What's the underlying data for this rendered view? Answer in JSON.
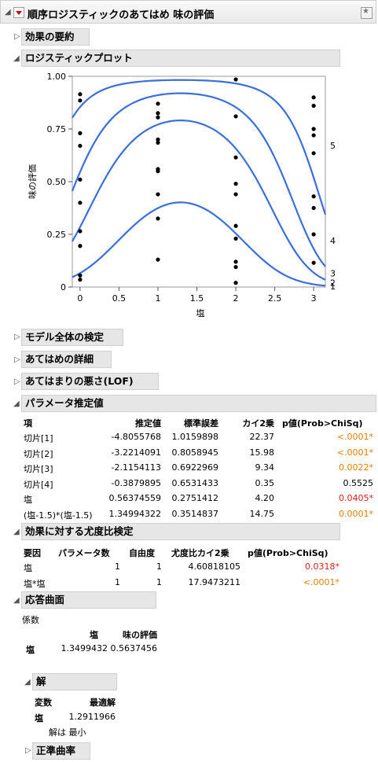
{
  "report": {
    "title": "順序ロジスティックのあてはめ 味の評価"
  },
  "sections": {
    "effects_summary": "効果の要約",
    "logistic_plot": "ロジスティックプロット",
    "whole_model": "モデル全体の検定",
    "fit_details": "あてはめの詳細",
    "lack_of_fit": "あてはまりの悪さ(LOF)",
    "param_estimates": "パラメータ推定値",
    "lr_tests": "効果に対する尤度比検定",
    "response_surface": "応答曲面",
    "solution": "解",
    "canonical": "正準曲率"
  },
  "chart_data": {
    "type": "line",
    "ylabel": "味の評価",
    "xlabel": "塩",
    "xlim": [
      -0.1,
      3.15
    ],
    "ylim": [
      0,
      1
    ],
    "x_ticks": [
      "0",
      "0.5",
      "1",
      "1.5",
      "2",
      "2.5",
      "3"
    ],
    "y_ticks": [
      "0",
      "0.25",
      "0.50",
      "0.75",
      "1.00"
    ],
    "right_labels": [
      "1",
      "2",
      "3",
      "4",
      "5"
    ],
    "intercepts": [
      -4.8055768,
      -3.2214091,
      -2.1154113,
      -0.3879895
    ],
    "b_salt": 0.56374559,
    "b_quad": 1.34994322,
    "points": [
      {
        "x": 0,
        "y": 0.915
      },
      {
        "x": 0,
        "y": 0.885
      },
      {
        "x": 0,
        "y": 0.73
      },
      {
        "x": 0,
        "y": 0.67
      },
      {
        "x": 0,
        "y": 0.51
      },
      {
        "x": 0,
        "y": 0.4
      },
      {
        "x": 0,
        "y": 0.265
      },
      {
        "x": 0,
        "y": 0.195
      },
      {
        "x": 0,
        "y": 0.055
      },
      {
        "x": 0,
        "y": 0.035
      },
      {
        "x": 1,
        "y": 0.87
      },
      {
        "x": 1,
        "y": 0.825
      },
      {
        "x": 1,
        "y": 0.805
      },
      {
        "x": 1,
        "y": 0.7
      },
      {
        "x": 1,
        "y": 0.685
      },
      {
        "x": 1,
        "y": 0.56
      },
      {
        "x": 1,
        "y": 0.55
      },
      {
        "x": 1,
        "y": 0.44
      },
      {
        "x": 1,
        "y": 0.325
      },
      {
        "x": 1,
        "y": 0.13
      },
      {
        "x": 2,
        "y": 0.985
      },
      {
        "x": 2,
        "y": 0.81
      },
      {
        "x": 2,
        "y": 0.615
      },
      {
        "x": 2,
        "y": 0.49
      },
      {
        "x": 2,
        "y": 0.44
      },
      {
        "x": 2,
        "y": 0.29
      },
      {
        "x": 2,
        "y": 0.23
      },
      {
        "x": 2,
        "y": 0.12
      },
      {
        "x": 2,
        "y": 0.095
      },
      {
        "x": 2,
        "y": 0.02
      },
      {
        "x": 3,
        "y": 0.9
      },
      {
        "x": 3,
        "y": 0.86
      },
      {
        "x": 3,
        "y": 0.75
      },
      {
        "x": 3,
        "y": 0.72
      },
      {
        "x": 3,
        "y": 0.635
      },
      {
        "x": 3,
        "y": 0.43
      },
      {
        "x": 3,
        "y": 0.375
      },
      {
        "x": 3,
        "y": 0.25
      },
      {
        "x": 3,
        "y": 0.115
      }
    ]
  },
  "param_table": {
    "headers": [
      "項",
      "推定値",
      "標準誤差",
      "カイ2乗",
      "p値(Prob>ChiSq)"
    ],
    "rows": [
      {
        "term": "切片[1]",
        "est": "-4.8055768",
        "se": "1.0159898",
        "chi": "22.37",
        "p": "<.0001*",
        "pcolor": "orange"
      },
      {
        "term": "切片[2]",
        "est": "-3.2214091",
        "se": "0.8058945",
        "chi": "15.98",
        "p": "<.0001*",
        "pcolor": "orange"
      },
      {
        "term": "切片[3]",
        "est": "-2.1154113",
        "se": "0.6922969",
        "chi": "9.34",
        "p": "0.0022*",
        "pcolor": "orange"
      },
      {
        "term": "切片[4]",
        "est": "-0.3879895",
        "se": "0.6531433",
        "chi": "0.35",
        "p": "0.5525",
        "pcolor": "black"
      },
      {
        "term": "塩",
        "est": "0.56374559",
        "se": "0.2751412",
        "chi": "4.20",
        "p": "0.0405*",
        "pcolor": "red"
      },
      {
        "term": "(塩-1.5)*(塩-1.5)",
        "est": "1.34994322",
        "se": "0.3514837",
        "chi": "14.75",
        "p": "0.0001*",
        "pcolor": "orange"
      }
    ]
  },
  "lr_table": {
    "headers": [
      "要因",
      "パラメータ数",
      "自由度",
      "尤度比カイ2乗",
      "p値(Prob>ChiSq)"
    ],
    "rows": [
      {
        "src": "塩",
        "np": "1",
        "df": "1",
        "chi": "4.60818105",
        "p": "0.0318*",
        "pcolor": "red"
      },
      {
        "src": "塩*塩",
        "np": "1",
        "df": "1",
        "chi": "17.9473211",
        "p": "<.0001*",
        "pcolor": "orange"
      }
    ]
  },
  "coef": {
    "caption": "係数",
    "col1": "塩",
    "col2": "味の評価",
    "row_label": "塩",
    "v1": "1.3499432",
    "v2": "0.5637456"
  },
  "solution": {
    "h1": "変数",
    "h2": "最適解",
    "var": "塩",
    "value": "1.2911966",
    "note": "解は 最小"
  },
  "colors": {
    "curve": "#3a6fdc",
    "orange": "#e67e00",
    "red": "#e02020"
  }
}
